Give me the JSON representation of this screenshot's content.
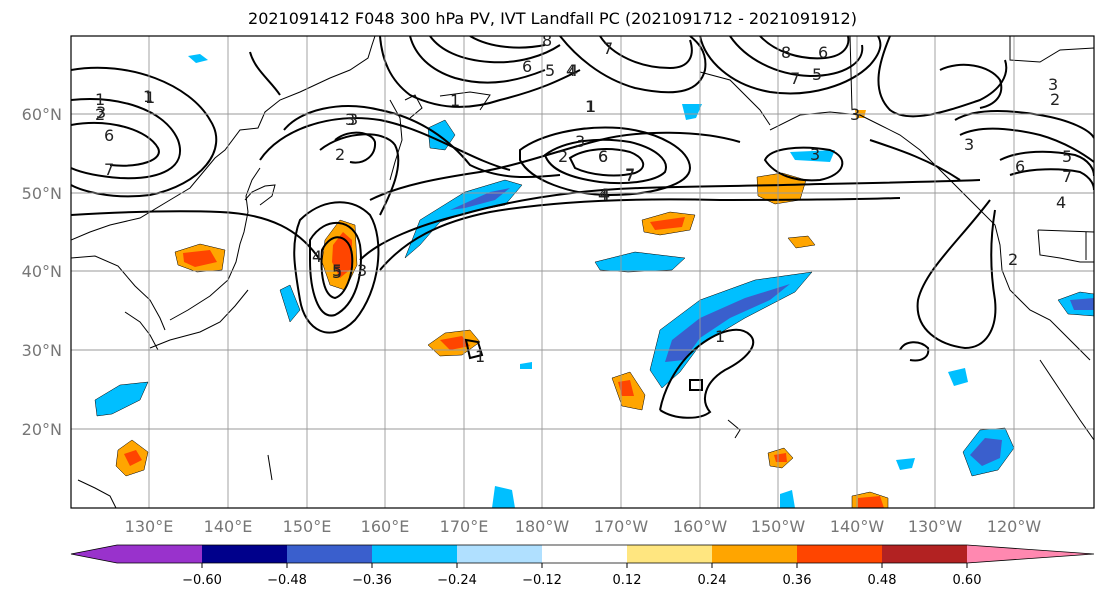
{
  "title": "2021091412 F048 300 hPa PV, IVT Landfall PC (2021091712 - 2021091912)",
  "lat_labels": [
    "60°N",
    "50°N",
    "40°N",
    "30°N",
    "20°N"
  ],
  "lon_labels": [
    "130°E",
    "140°E",
    "150°E",
    "160°E",
    "170°E",
    "180°W",
    "170°W",
    "160°W",
    "150°W",
    "140°W",
    "130°W",
    "120°W"
  ],
  "colorbar": {
    "colors": [
      "#9932cc",
      "#00008b",
      "#3a5fcd",
      "#00bfff",
      "#b0e0ff",
      "#ffffff",
      "#ffe680",
      "#ffa500",
      "#ff4500",
      "#b22222",
      "#ff88b0"
    ],
    "tick_labels": [
      "−0.60",
      "−0.48",
      "−0.36",
      "−0.24",
      "−0.12",
      "0.12",
      "0.24",
      "0.36",
      "0.48",
      "0.60"
    ]
  },
  "contour_labels": [
    "1",
    "2",
    "3",
    "6",
    "7",
    "8",
    "6",
    "5",
    "4",
    "7",
    "8",
    "6",
    "7",
    "3",
    "2",
    "1",
    "3",
    "2",
    "3",
    "6",
    "7",
    "4",
    "3",
    "1",
    "2",
    "5",
    "3",
    "4",
    "3",
    "6",
    "7",
    "5",
    "4",
    "4",
    "5",
    "3",
    "1",
    "1",
    "1",
    "1",
    "1",
    "2",
    "3",
    "4",
    "5",
    "6",
    "7"
  ]
}
